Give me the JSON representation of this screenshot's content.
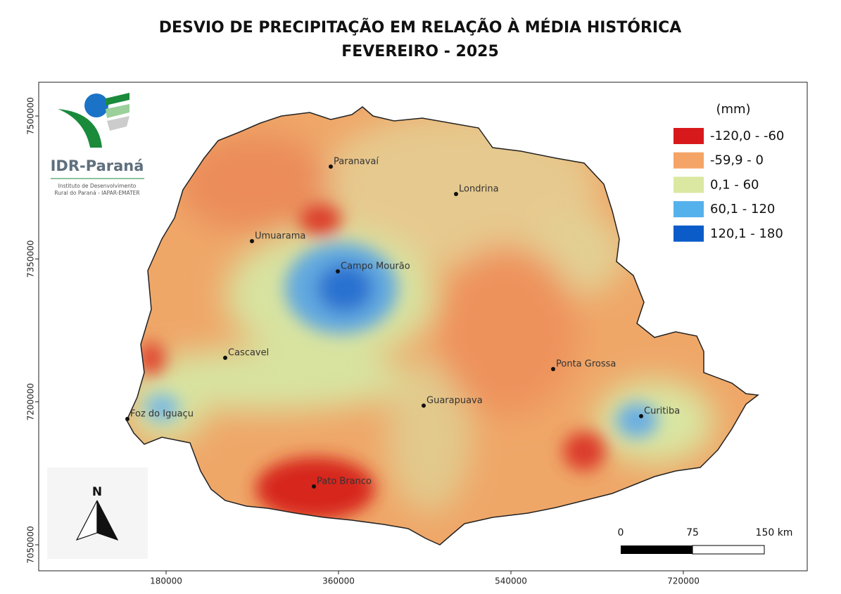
{
  "header": {
    "title_line1": "DESVIO DE PRECIPITAÇÃO EM RELAÇÃO À MÉDIA HISTÓRICA",
    "title_line2": "FEVEREIRO - 2025"
  },
  "logo": {
    "name": "IDR-Paraná",
    "subtitle_line1": "Instituto de Desenvolvimento",
    "subtitle_line2": "Rural do Paraná - IAPAR-EMATER"
  },
  "legend": {
    "title": "(mm)",
    "items": [
      {
        "label": "-120,0 - -60",
        "color": "#d7191c"
      },
      {
        "label": "-59,9 - 0",
        "color": "#f4a466"
      },
      {
        "label": "0,1 - 60",
        "color": "#dbe8a2"
      },
      {
        "label": "60,1 - 120",
        "color": "#55b1ec"
      },
      {
        "label": "120,1 - 180",
        "color": "#0b5cc8"
      }
    ]
  },
  "axes": {
    "x_ticks": [
      180000,
      360000,
      540000,
      720000
    ],
    "y_ticks": [
      7500000,
      7350000,
      7200000,
      7050000
    ]
  },
  "cities": [
    "Paranavaí",
    "Londrina",
    "Umuarama",
    "Campo Mourão",
    "Cascavel",
    "Ponta Grossa",
    "Guarapuava",
    "Foz do Iguaçu",
    "Curitiba",
    "Pato Branco"
  ],
  "north_arrow": "N",
  "scale_bar": {
    "labels": [
      "0",
      "75",
      "150 km"
    ]
  }
}
